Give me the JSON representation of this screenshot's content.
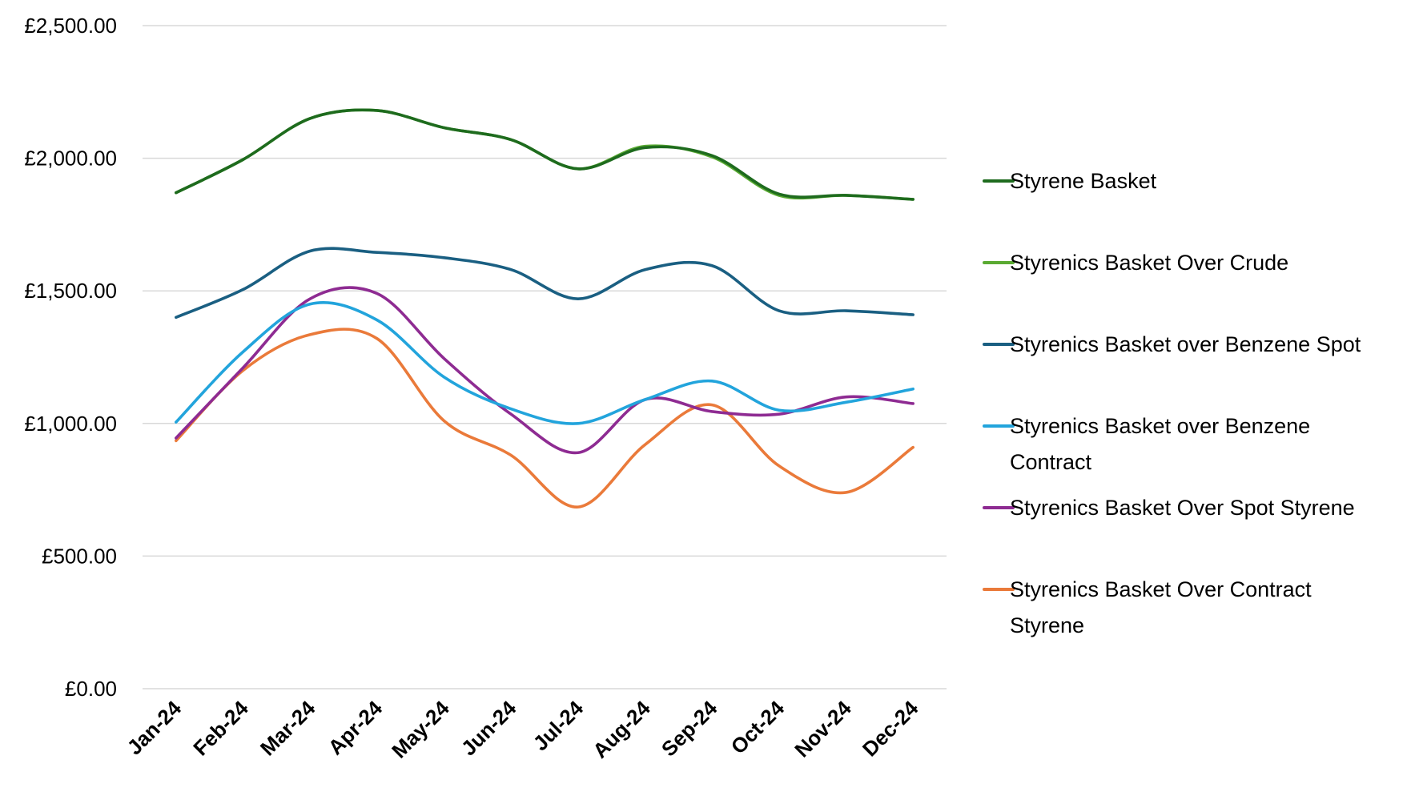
{
  "chart_data": {
    "type": "line",
    "title": "",
    "xlabel": "",
    "ylabel": "",
    "categories": [
      "Jan-24",
      "Feb-24",
      "Mar-24",
      "Apr-24",
      "May-24",
      "Jun-24",
      "Jul-24",
      "Aug-24",
      "Sep-24",
      "Oct-24",
      "Nov-24",
      "Dec-24"
    ],
    "ylim": [
      0,
      2500
    ],
    "yticks": [
      0,
      500,
      1000,
      1500,
      2000,
      2500
    ],
    "ytick_labels": [
      "£0.00",
      "£500.00",
      "£1,000.00",
      "£1,500.00",
      "£2,000.00",
      "£2,500.00"
    ],
    "grid": true,
    "smooth": true,
    "legend_position": "right",
    "series": [
      {
        "name": "Styrene Basket",
        "color": "#1e6b1e",
        "values": [
          1870,
          1995,
          2150,
          2180,
          2115,
          2070,
          1960,
          2040,
          2010,
          1865,
          1860,
          1845
        ]
      },
      {
        "name": "Styrenics Basket Over Crude",
        "color": "#5aaa32",
        "values": [
          1870,
          1995,
          2150,
          2180,
          2115,
          2070,
          1960,
          2045,
          2005,
          1860,
          1860,
          1845
        ]
      },
      {
        "name": "Styrenics Basket over Benzene Spot",
        "color": "#1a5f82",
        "values": [
          1400,
          1505,
          1650,
          1645,
          1625,
          1580,
          1470,
          1580,
          1595,
          1425,
          1425,
          1410
        ]
      },
      {
        "name": "Styrenics Basket over Benzene Contract",
        "color": "#22a4dc",
        "values": [
          1005,
          1270,
          1450,
          1390,
          1175,
          1055,
          1000,
          1090,
          1160,
          1050,
          1080,
          1130
        ]
      },
      {
        "name": "Styrenics Basket Over Spot Styrene",
        "color": "#8e2b92",
        "values": [
          945,
          1210,
          1470,
          1490,
          1245,
          1035,
          890,
          1090,
          1045,
          1035,
          1100,
          1075
        ]
      },
      {
        "name": "Styrenics Basket Over Contract Styrene",
        "color": "#ea7a3a",
        "values": [
          935,
          1200,
          1335,
          1320,
          1010,
          880,
          685,
          920,
          1070,
          840,
          740,
          910
        ]
      }
    ],
    "legend_lines": [
      [
        "Styrene Basket"
      ],
      [
        "Styrenics Basket Over Crude"
      ],
      [
        "Styrenics Basket over Benzene Spot"
      ],
      [
        "Styrenics Basket over Benzene",
        "Contract"
      ],
      [
        "Styrenics Basket Over Spot Styrene"
      ],
      [
        "Styrenics Basket Over Contract",
        "Styrene"
      ]
    ]
  }
}
